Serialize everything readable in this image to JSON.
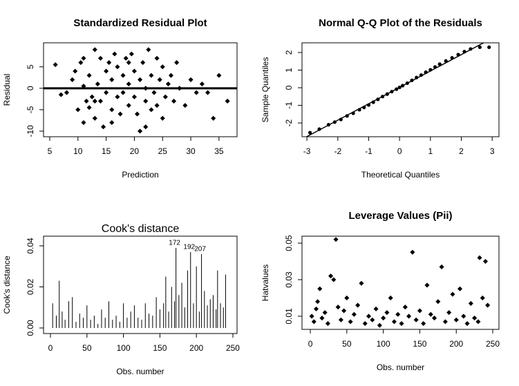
{
  "chart_data": [
    {
      "type": "scatter",
      "title": "Standardized Residual Plot",
      "x_label": "Prediction",
      "y_label": "Residual",
      "xlim": [
        3.9,
        38.2
      ],
      "ylim": [
        -11.3,
        10.6
      ],
      "xticks": [
        5,
        10,
        15,
        20,
        25,
        30,
        35
      ],
      "yticks": [
        -10,
        -5,
        0,
        5
      ],
      "hline": 0,
      "color": "#000000",
      "x": [
        6,
        7,
        8,
        9,
        9.5,
        10,
        10.5,
        11,
        11,
        11.5,
        12,
        12,
        12.5,
        13,
        13,
        13.5,
        14,
        14,
        14.5,
        15,
        15,
        15.5,
        16,
        16,
        16.5,
        17,
        17,
        17.5,
        18,
        18,
        18.5,
        19,
        19,
        19.5,
        20,
        20,
        20.5,
        21,
        21,
        21.5,
        22,
        22,
        22.5,
        23,
        23,
        23.5,
        24,
        24,
        24.5,
        25,
        25,
        25.5,
        26,
        26.5,
        27,
        27.5,
        28,
        29,
        30,
        31,
        32,
        33,
        34,
        35,
        36.5,
        13,
        16,
        19,
        22,
        11
      ],
      "values": [
        5.5,
        -1.5,
        -1,
        2,
        4,
        -5,
        6,
        -8,
        0.5,
        -3,
        3,
        -4.5,
        -2,
        9,
        -7,
        1,
        7,
        -3,
        -9,
        4,
        -1,
        6,
        -5,
        2,
        8,
        -2,
        5,
        -6,
        3,
        -1,
        7,
        -4,
        1,
        8,
        -2,
        4,
        -6,
        2,
        -10,
        6,
        -3,
        0,
        9,
        -5,
        3,
        -1,
        7,
        -4,
        2,
        -7,
        5,
        -2,
        1,
        3,
        -3,
        6,
        0,
        -4,
        2,
        -1,
        1,
        -1,
        -7,
        3,
        -3,
        -3,
        -8,
        6,
        -9,
        7
      ]
    },
    {
      "type": "qq",
      "title": "Normal Q-Q Plot of the Residuals",
      "x_label": "Theoretical Quantiles",
      "y_label": "Sample Quantiles",
      "xlim": [
        -3.16,
        3.22
      ],
      "ylim": [
        -2.78,
        2.55
      ],
      "xticks": [
        -3,
        -2,
        -1,
        0,
        1,
        2,
        3
      ],
      "yticks": [
        -2,
        -1,
        0,
        1,
        2
      ],
      "qqline": {
        "intercept": 0.02,
        "slope": 0.93
      },
      "color": "#000000",
      "x": [
        -2.9,
        -2.6,
        -2.3,
        -2.1,
        -1.9,
        -1.7,
        -1.5,
        -1.3,
        -1.15,
        -1.0,
        -0.85,
        -0.7,
        -0.55,
        -0.4,
        -0.25,
        -0.1,
        0.0,
        0.1,
        0.25,
        0.4,
        0.55,
        0.7,
        0.85,
        1.0,
        1.15,
        1.3,
        1.5,
        1.7,
        1.9,
        2.1,
        2.3,
        2.6,
        2.9
      ],
      "values": [
        -2.55,
        -2.35,
        -2.1,
        -1.95,
        -1.8,
        -1.6,
        -1.45,
        -1.25,
        -1.12,
        -0.98,
        -0.82,
        -0.66,
        -0.5,
        -0.36,
        -0.22,
        -0.08,
        0.02,
        0.12,
        0.26,
        0.42,
        0.58,
        0.72,
        0.88,
        1.02,
        1.18,
        1.34,
        1.52,
        1.7,
        1.88,
        2.05,
        2.2,
        2.3,
        2.3
      ]
    },
    {
      "type": "needle",
      "title": "Cook's distance",
      "title_style": "plain",
      "x_label": "Obs. number",
      "y_label": "Cook's distance",
      "xlim": [
        -9.5,
        255.7
      ],
      "ylim": [
        -0.0027,
        0.0447
      ],
      "xticks": [
        0,
        50,
        100,
        150,
        200,
        250
      ],
      "yticks": [
        {
          "value": 0,
          "label": "0.00"
        },
        0.02,
        0.04
      ],
      "color": "#000000",
      "x": [
        3,
        8,
        12,
        16,
        20,
        25,
        30,
        35,
        40,
        45,
        50,
        55,
        60,
        65,
        70,
        75,
        80,
        85,
        90,
        95,
        100,
        105,
        110,
        115,
        120,
        125,
        130,
        135,
        140,
        145,
        150,
        155,
        158,
        162,
        166,
        170,
        172,
        176,
        180,
        184,
        188,
        192,
        196,
        200,
        204,
        207,
        211,
        215,
        219,
        223,
        227,
        229,
        233,
        237,
        240
      ],
      "values": [
        0.012,
        0.006,
        0.023,
        0.008,
        0.004,
        0.013,
        0.015,
        0.003,
        0.007,
        0.005,
        0.011,
        0.004,
        0.006,
        0.002,
        0.009,
        0.005,
        0.013,
        0.004,
        0.006,
        0.003,
        0.012,
        0.005,
        0.008,
        0.011,
        0.005,
        0.004,
        0.012,
        0.007,
        0.006,
        0.015,
        0.009,
        0.012,
        0.025,
        0.008,
        0.02,
        0.013,
        0.039,
        0.016,
        0.022,
        0.01,
        0.028,
        0.037,
        0.012,
        0.03,
        0.008,
        0.036,
        0.018,
        0.011,
        0.014,
        0.016,
        0.009,
        0.028,
        0.012,
        0.01,
        0.026
      ],
      "point_labels": [
        null,
        null,
        null,
        null,
        null,
        null,
        null,
        null,
        null,
        null,
        null,
        null,
        null,
        null,
        null,
        null,
        null,
        null,
        null,
        null,
        null,
        null,
        null,
        null,
        null,
        null,
        null,
        null,
        null,
        null,
        null,
        null,
        null,
        null,
        null,
        null,
        "172",
        null,
        null,
        null,
        null,
        "192",
        null,
        null,
        null,
        "207",
        null,
        null,
        null,
        null,
        null,
        null,
        null,
        null,
        null
      ]
    },
    {
      "type": "scatter",
      "title": "Leverage Values (Pii)",
      "x_label": "Obs. number",
      "y_label": "Hatvalues",
      "xlim": [
        -11.4,
        258.5
      ],
      "ylim": [
        0.0028,
        0.0538
      ],
      "xticks": [
        0,
        50,
        100,
        150,
        200,
        250
      ],
      "yticks": [
        0.01,
        0.03,
        0.05
      ],
      "color": "#000000",
      "x": [
        2,
        5,
        8,
        10,
        13,
        16,
        20,
        24,
        28,
        32,
        35,
        38,
        42,
        46,
        50,
        55,
        60,
        65,
        70,
        75,
        80,
        85,
        90,
        95,
        100,
        105,
        110,
        115,
        120,
        125,
        130,
        135,
        140,
        145,
        150,
        155,
        160,
        165,
        170,
        175,
        180,
        185,
        190,
        195,
        200,
        205,
        210,
        215,
        220,
        225,
        230,
        232,
        236,
        240,
        243
      ],
      "values": [
        0.01,
        0.007,
        0.014,
        0.018,
        0.025,
        0.009,
        0.012,
        0.006,
        0.032,
        0.03,
        0.052,
        0.015,
        0.008,
        0.013,
        0.02,
        0.007,
        0.011,
        0.016,
        0.028,
        0.006,
        0.01,
        0.008,
        0.014,
        0.005,
        0.009,
        0.012,
        0.02,
        0.007,
        0.011,
        0.006,
        0.015,
        0.01,
        0.045,
        0.008,
        0.013,
        0.006,
        0.027,
        0.011,
        0.009,
        0.018,
        0.037,
        0.007,
        0.012,
        0.022,
        0.008,
        0.025,
        0.01,
        0.006,
        0.017,
        0.009,
        0.007,
        0.042,
        0.02,
        0.04,
        0.016
      ]
    }
  ]
}
